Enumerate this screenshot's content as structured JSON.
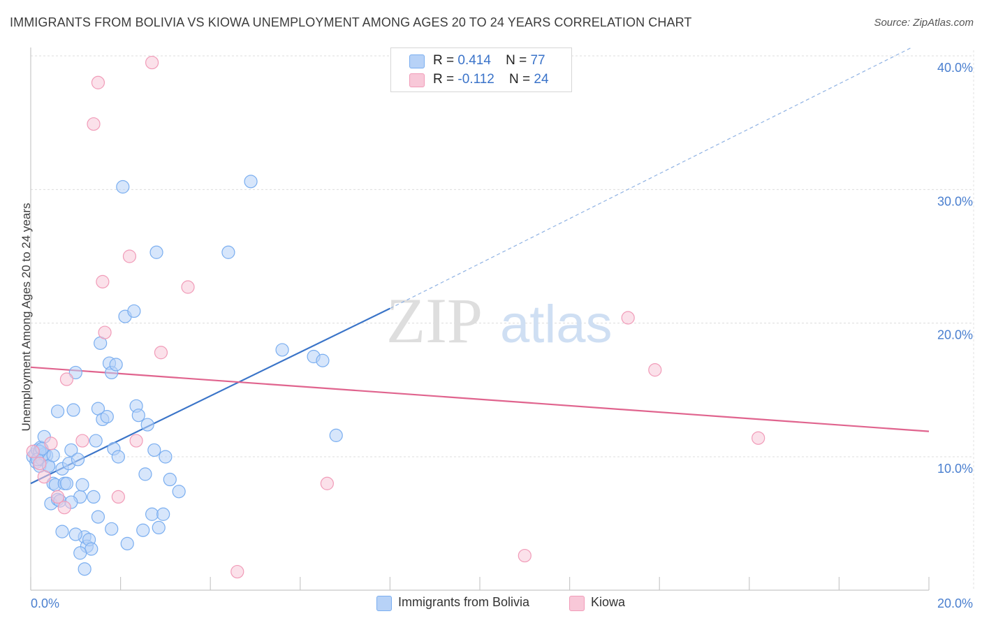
{
  "chart_data": {
    "type": "scatter",
    "title": "IMMIGRANTS FROM BOLIVIA VS KIOWA UNEMPLOYMENT AMONG AGES 20 TO 24 YEARS CORRELATION CHART",
    "source": "Source: ZipAtlas.com",
    "xlabel": "",
    "ylabel": "Unemployment Among Ages 20 to 24 years",
    "xlim": [
      0,
      20
    ],
    "ylim": [
      0,
      41
    ],
    "x_tick_labels": [
      "0.0%",
      "20.0%"
    ],
    "y_ticks": [
      10,
      20,
      30,
      40
    ],
    "y_tick_labels": [
      "10.0%",
      "20.0%",
      "30.0%",
      "40.0%"
    ],
    "grid": true,
    "watermark": {
      "zip": "ZIP",
      "atlas": "atlas"
    },
    "legend": {
      "position": "top-center",
      "r_label": "R =",
      "n_label": "N ="
    },
    "series": [
      {
        "name": "Immigrants from Bolivia",
        "r": "0.414",
        "n": "77",
        "color": "#7aaef0",
        "fill": "#b7d2f7",
        "trend_color": "#3a74c8",
        "trend": {
          "x0": 0,
          "y0": 8.0,
          "x1": 8.0,
          "y1": 21.1,
          "dash_to_x": 19.6,
          "dash_to_y": 40.6
        },
        "points": [
          [
            0.05,
            10.0
          ],
          [
            0.1,
            10.2
          ],
          [
            0.12,
            9.6
          ],
          [
            0.15,
            10.5
          ],
          [
            0.2,
            9.3
          ],
          [
            0.22,
            10.7
          ],
          [
            0.25,
            9.8
          ],
          [
            0.3,
            11.5
          ],
          [
            0.35,
            10.1
          ],
          [
            0.4,
            9.3
          ],
          [
            0.45,
            6.5
          ],
          [
            0.5,
            8.0
          ],
          [
            0.55,
            7.9
          ],
          [
            0.6,
            6.8
          ],
          [
            0.65,
            6.7
          ],
          [
            0.7,
            9.1
          ],
          [
            0.75,
            8.0
          ],
          [
            0.8,
            8.0
          ],
          [
            0.85,
            9.5
          ],
          [
            0.9,
            10.5
          ],
          [
            0.95,
            13.5
          ],
          [
            1.0,
            16.3
          ],
          [
            1.05,
            9.8
          ],
          [
            1.1,
            7.0
          ],
          [
            1.15,
            7.9
          ],
          [
            1.2,
            4.0
          ],
          [
            1.25,
            3.3
          ],
          [
            1.3,
            3.8
          ],
          [
            1.35,
            3.1
          ],
          [
            1.4,
            7.0
          ],
          [
            1.45,
            11.2
          ],
          [
            1.5,
            13.6
          ],
          [
            1.55,
            18.5
          ],
          [
            1.6,
            12.8
          ],
          [
            1.7,
            13.0
          ],
          [
            1.75,
            17.0
          ],
          [
            1.8,
            16.3
          ],
          [
            1.85,
            10.6
          ],
          [
            1.9,
            16.9
          ],
          [
            1.95,
            10.0
          ],
          [
            2.05,
            30.2
          ],
          [
            2.1,
            20.5
          ],
          [
            2.15,
            3.5
          ],
          [
            2.35,
            13.8
          ],
          [
            2.4,
            13.1
          ],
          [
            2.5,
            4.5
          ],
          [
            2.55,
            8.7
          ],
          [
            2.6,
            12.4
          ],
          [
            2.7,
            5.7
          ],
          [
            2.75,
            10.5
          ],
          [
            2.8,
            25.3
          ],
          [
            2.85,
            4.7
          ],
          [
            2.95,
            5.7
          ],
          [
            3.0,
            10.0
          ],
          [
            3.1,
            8.3
          ],
          [
            3.3,
            7.4
          ],
          [
            4.4,
            25.3
          ],
          [
            4.9,
            30.6
          ],
          [
            5.6,
            18.0
          ],
          [
            6.3,
            17.5
          ],
          [
            6.5,
            17.2
          ],
          [
            6.8,
            11.6
          ],
          [
            1.2,
            1.6
          ],
          [
            1.1,
            2.8
          ],
          [
            0.4,
            9.3
          ],
          [
            0.3,
            10.2
          ],
          [
            0.2,
            10.4
          ],
          [
            0.6,
            13.4
          ],
          [
            0.7,
            4.4
          ],
          [
            1.0,
            4.2
          ],
          [
            1.5,
            5.5
          ],
          [
            1.8,
            4.6
          ],
          [
            2.3,
            20.9
          ],
          [
            0.15,
            9.8
          ],
          [
            0.25,
            10.6
          ],
          [
            0.5,
            10.1
          ],
          [
            0.9,
            6.6
          ]
        ]
      },
      {
        "name": "Kiowa",
        "r": "-0.112",
        "n": "24",
        "color": "#f19bb8",
        "fill": "#f8c8d8",
        "trend_color": "#e0648e",
        "trend": {
          "x0": 0,
          "y0": 16.7,
          "x1": 20,
          "y1": 11.9
        },
        "points": [
          [
            0.05,
            10.4
          ],
          [
            0.2,
            9.5
          ],
          [
            0.3,
            8.5
          ],
          [
            0.45,
            11.0
          ],
          [
            0.6,
            7.0
          ],
          [
            0.75,
            6.2
          ],
          [
            0.8,
            15.8
          ],
          [
            1.15,
            11.2
          ],
          [
            1.4,
            34.9
          ],
          [
            1.5,
            38.0
          ],
          [
            1.6,
            23.1
          ],
          [
            1.65,
            19.3
          ],
          [
            1.95,
            7.0
          ],
          [
            2.2,
            25.0
          ],
          [
            2.35,
            11.2
          ],
          [
            2.7,
            39.5
          ],
          [
            2.9,
            17.8
          ],
          [
            3.5,
            22.7
          ],
          [
            4.6,
            1.4
          ],
          [
            6.6,
            8.0
          ],
          [
            11.0,
            2.6
          ],
          [
            13.3,
            20.4
          ],
          [
            13.9,
            16.5
          ],
          [
            16.2,
            11.4
          ]
        ]
      }
    ]
  }
}
